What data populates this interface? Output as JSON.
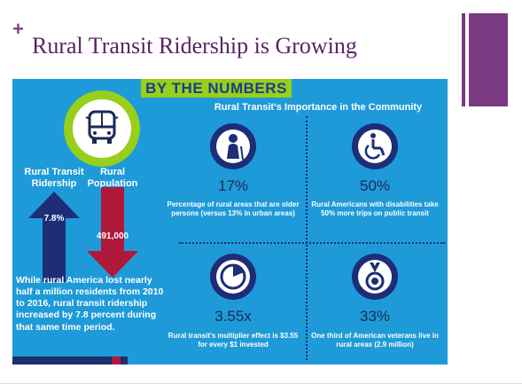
{
  "slide": {
    "bullet": "+",
    "title": "Rural Transit Ridership is Growing",
    "accent_color": "#7a3a82"
  },
  "infographic": {
    "banner": "BY THE NUMBERS",
    "bus_icon": "bus-icon",
    "left": {
      "ridership_label": "Rural Transit\nRidership",
      "population_label": "Rural\nPopulation",
      "ridership_value": "7.8%",
      "population_value": "491,000",
      "summary": "While rural America lost nearly half a million residents from 2010 to 2016, rural transit ridership increased by 7.8 percent during that same time period."
    },
    "right": {
      "heading": "Rural Transit's Importance in the Community",
      "stats": [
        {
          "icon": "elderly-person-icon",
          "value": "17%",
          "text": "Percentage of rural areas that are older persons (versus 13% in urban areas)"
        },
        {
          "icon": "wheelchair-icon",
          "value": "50%",
          "text": "Rural Americans with disabilities take 50% more trips on public transit"
        },
        {
          "icon": "pie-chart-icon",
          "value": "3.55x",
          "text": "Rural transit's multiplier effect is $3.55 for every $1 invested"
        },
        {
          "icon": "medal-icon",
          "value": "33%",
          "text": "One third of American veterans live in rural areas (2.9 million)"
        }
      ]
    },
    "colors": {
      "background": "#1e9ad9",
      "green": "#97cf1a",
      "navy": "#1d2d78",
      "red": "#b0183a"
    }
  }
}
